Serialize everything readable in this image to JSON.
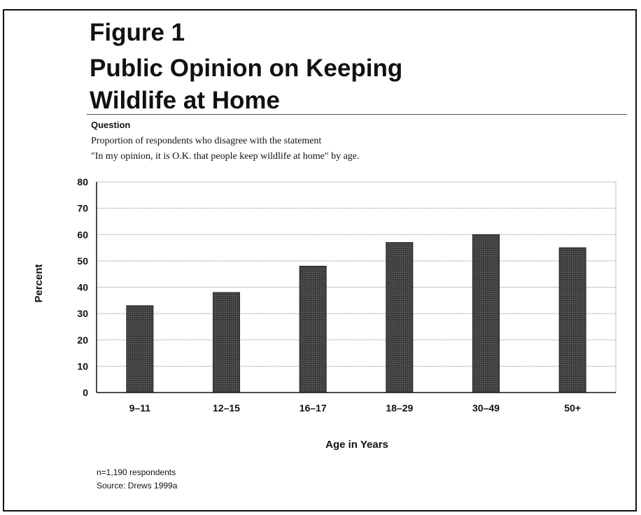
{
  "figure": {
    "title_lines": [
      "Figure 1",
      "Public Opinion on Keeping",
      "Wildlife at Home"
    ],
    "question_label": "Question",
    "question_lines": [
      "Proportion of respondents who disagree with the statement",
      "\"In my opinion, it is O.K. that people keep wildlife at home\" by age."
    ],
    "notes": [
      "n=1,190 respondents",
      "Source: Drews 1999a"
    ]
  },
  "chart_data": {
    "type": "bar",
    "categories": [
      "9–11",
      "12–15",
      "16–17",
      "18–29",
      "30–49",
      "50+"
    ],
    "values": [
      33,
      38,
      48,
      57,
      60,
      55
    ],
    "xlabel": "Age in Years",
    "ylabel": "Percent",
    "ylim": [
      0,
      80
    ],
    "yticks": [
      0,
      10,
      20,
      30,
      40,
      50,
      60,
      70,
      80
    ],
    "grid": true,
    "bar_color": "#3a3a3a"
  }
}
